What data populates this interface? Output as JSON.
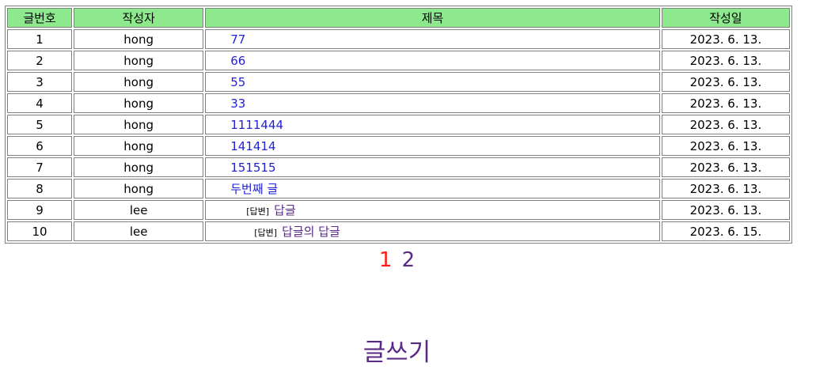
{
  "table": {
    "headers": {
      "no": "글번호",
      "writer": "작성자",
      "title": "제목",
      "date": "작성일"
    },
    "rows": [
      {
        "no": "1",
        "writer": "hong",
        "title": "77",
        "date": "2023. 6. 13.",
        "level": 0,
        "visited": false
      },
      {
        "no": "2",
        "writer": "hong",
        "title": "66",
        "date": "2023. 6. 13.",
        "level": 0,
        "visited": false
      },
      {
        "no": "3",
        "writer": "hong",
        "title": "55",
        "date": "2023. 6. 13.",
        "level": 0,
        "visited": false
      },
      {
        "no": "4",
        "writer": "hong",
        "title": "33",
        "date": "2023. 6. 13.",
        "level": 0,
        "visited": false
      },
      {
        "no": "5",
        "writer": "hong",
        "title": "1111444",
        "date": "2023. 6. 13.",
        "level": 0,
        "visited": false
      },
      {
        "no": "6",
        "writer": "hong",
        "title": "141414",
        "date": "2023. 6. 13.",
        "level": 0,
        "visited": false
      },
      {
        "no": "7",
        "writer": "hong",
        "title": "151515",
        "date": "2023. 6. 13.",
        "level": 0,
        "visited": false
      },
      {
        "no": "8",
        "writer": "hong",
        "title": "두번째 글",
        "date": "2023. 6. 13.",
        "level": 0,
        "visited": false
      },
      {
        "no": "9",
        "writer": "lee",
        "title": "답글",
        "date": "2023. 6. 13.",
        "level": 1,
        "visited": true
      },
      {
        "no": "10",
        "writer": "lee",
        "title": "답글의 답글",
        "date": "2023. 6. 15.",
        "level": 2,
        "visited": true
      }
    ],
    "reply_tag": "[답변]"
  },
  "pagination": {
    "pages": [
      "1",
      "2"
    ],
    "current": "1"
  },
  "write_link": "글쓰기",
  "colors": {
    "header_bg": "#8ee88e",
    "link": "#1f1fd6",
    "visited_link": "#5a2a86",
    "current_page": "#ff1a1a"
  }
}
